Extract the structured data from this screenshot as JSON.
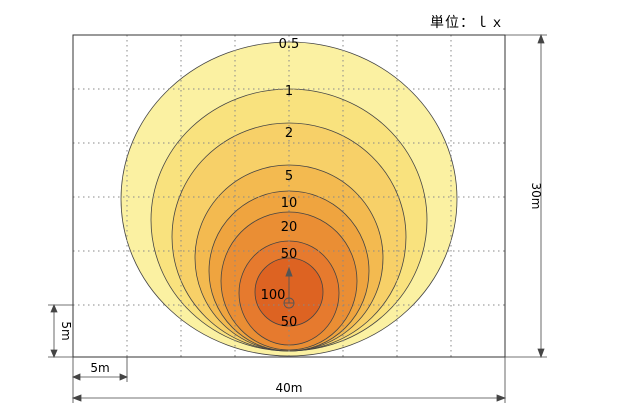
{
  "unit_label": "単位：ｌｘ",
  "contours": [
    {
      "label": "0.5",
      "fill": "#FBF1A2"
    },
    {
      "label": "1",
      "fill": "#F9E27E"
    },
    {
      "label": "2",
      "fill": "#F7D068"
    },
    {
      "label": "5",
      "fill": "#F3BA50"
    },
    {
      "label": "10",
      "fill": "#EFA43F"
    },
    {
      "label": "20",
      "fill": "#EA8E34"
    },
    {
      "label": "50",
      "fill": "#E67A2E"
    },
    {
      "label": "100",
      "fill": "#DD6322"
    }
  ],
  "inner_label_50": "50",
  "dimensions": {
    "width": "40m",
    "height": "30m",
    "grid_x": "5m",
    "grid_y": "5m"
  }
}
